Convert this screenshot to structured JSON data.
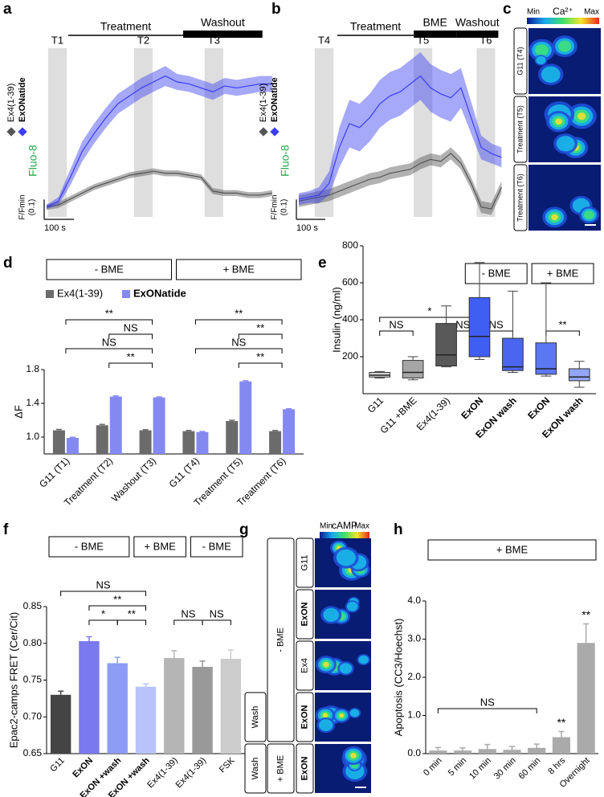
{
  "chart_data": [
    {
      "type": "trace",
      "letter": "a",
      "xlim": [
        0,
        790
      ],
      "ylim": [
        0.95,
        1.8
      ],
      "x": [
        0,
        40,
        80,
        120,
        160,
        200,
        240,
        280,
        320,
        360,
        400,
        440,
        480,
        520,
        560,
        600,
        640,
        680,
        720,
        760
      ],
      "series": [
        {
          "name": "Ex4(1-39)",
          "color": "#555555",
          "values": [
            1.0,
            1.01,
            1.04,
            1.07,
            1.1,
            1.12,
            1.14,
            1.16,
            1.17,
            1.18,
            1.17,
            1.17,
            1.16,
            1.15,
            1.08,
            1.07,
            1.07,
            1.06,
            1.06,
            1.07
          ],
          "error": [
            0.015,
            0.015,
            0.015,
            0.015,
            0.015,
            0.015,
            0.015,
            0.015,
            0.015,
            0.015,
            0.015,
            0.015,
            0.015,
            0.015,
            0.015,
            0.015,
            0.015,
            0.015,
            0.015,
            0.015
          ]
        },
        {
          "name": "ExONatide",
          "color": "#3a3ef0",
          "bold": true,
          "values": [
            1.0,
            1.03,
            1.15,
            1.28,
            1.37,
            1.45,
            1.52,
            1.56,
            1.6,
            1.63,
            1.66,
            1.63,
            1.62,
            1.6,
            1.58,
            1.61,
            1.6,
            1.61,
            1.62,
            1.62
          ],
          "error": [
            0.01,
            0.02,
            0.04,
            0.05,
            0.05,
            0.05,
            0.05,
            0.05,
            0.05,
            0.05,
            0.05,
            0.04,
            0.04,
            0.04,
            0.04,
            0.04,
            0.04,
            0.04,
            0.04,
            0.04
          ]
        }
      ],
      "periods": [
        {
          "label": "Treatment",
          "start": 73,
          "end": 460,
          "style": "thin"
        },
        {
          "label": "Washout",
          "start": 460,
          "end": 727,
          "style": "thick"
        }
      ],
      "windows": [
        {
          "label": "T1",
          "start": 5,
          "end": 68
        },
        {
          "label": "T2",
          "start": 295,
          "end": 357
        },
        {
          "label": "T3",
          "start": 532,
          "end": 595
        }
      ],
      "signal": "Fluo-8",
      "scale_x": {
        "value": 100,
        "label": "100 s"
      },
      "scale_y": {
        "value": 0.1,
        "label": [
          "F/Fmin",
          "(0.1)"
        ]
      }
    },
    {
      "type": "trace",
      "letter": "b",
      "xlim": [
        0,
        710
      ],
      "ylim": [
        0.95,
        1.8
      ],
      "x": [
        0,
        35,
        70,
        105,
        140,
        175,
        210,
        245,
        280,
        315,
        350,
        385,
        420,
        455,
        490,
        525,
        560,
        595,
        630,
        665,
        700
      ],
      "series": [
        {
          "name": "Ex4(1-39)",
          "color": "#555555",
          "values": [
            1.03,
            1.04,
            1.05,
            1.06,
            1.08,
            1.1,
            1.12,
            1.14,
            1.15,
            1.17,
            1.18,
            1.19,
            1.22,
            1.24,
            1.23,
            1.27,
            1.22,
            1.12,
            1.0,
            0.99,
            1.1
          ],
          "error": [
            0.03,
            0.03,
            0.03,
            0.03,
            0.03,
            0.03,
            0.03,
            0.03,
            0.03,
            0.03,
            0.03,
            0.03,
            0.03,
            0.03,
            0.03,
            0.03,
            0.03,
            0.03,
            0.03,
            0.03,
            0.03
          ]
        },
        {
          "name": "ExONatide",
          "color": "#3a3ef0",
          "bold": true,
          "values": [
            1.04,
            1.05,
            1.06,
            1.12,
            1.3,
            1.42,
            1.4,
            1.45,
            1.52,
            1.56,
            1.58,
            1.62,
            1.66,
            1.6,
            1.57,
            1.55,
            1.6,
            1.45,
            1.3,
            1.27,
            1.25
          ],
          "error": [
            0.03,
            0.03,
            0.04,
            0.06,
            0.1,
            0.12,
            0.12,
            0.12,
            0.12,
            0.12,
            0.12,
            0.12,
            0.12,
            0.12,
            0.12,
            0.12,
            0.1,
            0.08,
            0.06,
            0.05,
            0.05
          ]
        }
      ],
      "periods": [
        {
          "label": "Treatment",
          "start": 133,
          "end": 397,
          "style": "thin"
        },
        {
          "label": "BME",
          "start": 397,
          "end": 544,
          "style": "thick"
        },
        {
          "label": "Washout",
          "start": 544,
          "end": 689,
          "style": "thick"
        }
      ],
      "windows": [
        {
          "label": "T4",
          "start": 55,
          "end": 120
        },
        {
          "label": "T5",
          "start": 397,
          "end": 461
        },
        {
          "label": "T6",
          "start": 614,
          "end": 678
        }
      ],
      "signal": "Fluo-8",
      "scale_x": {
        "value": 100,
        "label": "100 s"
      },
      "scale_y": {
        "value": 0.1,
        "label": [
          "F/Fmin",
          "(0.1)"
        ]
      }
    },
    {
      "type": "image",
      "letter": "c",
      "colorbar": {
        "min": "Min",
        "title": "Ca²⁺",
        "max": "Max"
      },
      "rows": [
        "G11 (T4)",
        "Treatment (T5)",
        "Treatment (T6)"
      ]
    },
    {
      "type": "bar",
      "letter": "d",
      "categories": [
        "G11 (T1)",
        "Treatment (T2)",
        "Washout (T3)",
        "G11 (T4)",
        "Treatment (T5)",
        "Treatment (T6)"
      ],
      "series": [
        {
          "name": "Ex4(1-39)",
          "color": "#6b6b6b",
          "values": [
            1.08,
            1.14,
            1.08,
            1.07,
            1.19,
            1.07
          ],
          "error": [
            0.01,
            0.01,
            0.008,
            0.008,
            0.01,
            0.008
          ]
        },
        {
          "name": "ExONatide",
          "color": "#8489f2",
          "bold": true,
          "values": [
            0.99,
            1.48,
            1.47,
            1.06,
            1.66,
            1.33
          ],
          "error": [
            0.008,
            0.008,
            0.006,
            0.006,
            0.008,
            0.006
          ]
        }
      ],
      "legend": true,
      "ylabel": "ΔF",
      "ylim": [
        0.8,
        1.8
      ],
      "yticks": [
        {
          "value": 1,
          "label": "1.0"
        },
        1.4,
        1.8
      ],
      "headers": [
        {
          "label": "- BME",
          "from": 0,
          "to": 2
        },
        {
          "label": "+ BME",
          "from": 3,
          "to": 5
        }
      ],
      "brackets": [
        {
          "label": "**",
          "from": 1,
          "to": 2
        },
        {
          "label": "NS",
          "from": 0,
          "to": 2
        },
        {
          "label": "NS",
          "from": 1,
          "to": 2
        },
        {
          "label": "**",
          "from": 0,
          "to": 2
        },
        {
          "label": "**",
          "from": 4,
          "to": 5
        },
        {
          "label": "NS",
          "from": 3,
          "to": 5
        },
        {
          "label": "**",
          "from": 4,
          "to": 5
        },
        {
          "label": "**",
          "from": 3,
          "to": 5
        }
      ]
    },
    {
      "type": "box",
      "letter": "e",
      "categories": [
        "G11",
        "G11 +BME",
        "Ex4(1-39)",
        "ExON",
        "ExON wash",
        "ExON",
        "ExON wash"
      ],
      "colors": [
        "#d9d9d9",
        "#a6a6a6",
        "#595959",
        "#3f5ef2",
        "#4a66f0",
        "#5b77f2",
        "#93a5f7"
      ],
      "bold": [
        3,
        4,
        5,
        6
      ],
      "min": [
        85,
        75,
        145,
        185,
        115,
        95,
        35
      ],
      "q1": [
        90,
        85,
        150,
        200,
        125,
        105,
        70
      ],
      "median": [
        100,
        115,
        210,
        310,
        145,
        135,
        90
      ],
      "q3": [
        115,
        180,
        380,
        520,
        300,
        275,
        135
      ],
      "max": [
        120,
        200,
        475,
        710,
        555,
        600,
        175
      ],
      "ylabel": "Insulin (ng/ml)",
      "ylim": [
        0,
        800
      ],
      "yticks": [
        200,
        400,
        600,
        800
      ],
      "headers": [
        {
          "label": "- BME",
          "from": 3,
          "to": 4
        },
        {
          "label": "+ BME",
          "from": 5,
          "to": 6
        }
      ],
      "brackets": [
        {
          "label": "NS",
          "from": 0,
          "to": 1
        },
        {
          "label": "NS",
          "from": 3,
          "to": 4
        },
        {
          "label": "NS",
          "from": 2,
          "to": 3
        },
        {
          "label": "*",
          "from": 0,
          "to": 3
        },
        {
          "label": "**",
          "from": 5,
          "to": 6
        }
      ]
    },
    {
      "type": "bar",
      "letter": "f",
      "categories": [
        "G11",
        "ExON",
        "ExON +wash",
        "ExON +wash",
        "Ex4(1-39)",
        "Ex4(1-39)",
        "FSK"
      ],
      "values": [
        0.73,
        0.803,
        0.773,
        0.741,
        0.78,
        0.768,
        0.779
      ],
      "error": [
        0.005,
        0.006,
        0.008,
        0.004,
        0.01,
        0.008,
        0.012
      ],
      "colors": [
        "#444444",
        "#7b79ee",
        "#8d9cf5",
        "#b7c3fa",
        "#b5b5b5",
        "#999999",
        "#cccccc"
      ],
      "bold": [
        1,
        2,
        3
      ],
      "ylabel": "Epac2-camps FRET (Cer/Cit)",
      "ylim": [
        0.65,
        0.85
      ],
      "yticks": [
        0.65,
        {
          "value": 0.7,
          "label": "0.70"
        },
        0.75,
        {
          "value": 0.8,
          "label": "0.80"
        },
        0.85
      ],
      "headers": [
        {
          "label": "- BME",
          "from": 0,
          "to": 2
        },
        {
          "label": "+ BME",
          "from": 3,
          "to": 4
        },
        {
          "label": "- BME",
          "from": 5,
          "to": 6
        }
      ],
      "brackets": [
        {
          "label": "**",
          "from": 2,
          "to": 3
        },
        {
          "label": "*",
          "from": 1,
          "to": 2
        },
        {
          "label": "**",
          "from": 1,
          "to": 3
        },
        {
          "label": "NS",
          "from": 0,
          "to": 3
        },
        {
          "label": "NS",
          "from": 4,
          "to": 5
        },
        {
          "label": "NS",
          "from": 5,
          "to": 6
        }
      ]
    },
    {
      "type": "image",
      "letter": "g",
      "colorbar": {
        "min": "Min",
        "title": "cAMP",
        "max": "Max"
      },
      "rows": [
        "G11",
        "ExON",
        "Ex4",
        "ExON",
        "ExON"
      ],
      "bold": [
        1,
        3,
        4
      ],
      "conditions": [
        "- BME",
        "Wash",
        "Wash",
        "+ BME"
      ]
    },
    {
      "type": "bar",
      "letter": "h",
      "categories": [
        "0 min",
        "5 min",
        "10 min",
        "30 min",
        "60 min",
        "8 hrs",
        "Overnight"
      ],
      "values": [
        0.08,
        0.08,
        0.12,
        0.1,
        0.15,
        0.43,
        2.9
      ],
      "error": [
        0.08,
        0.07,
        0.12,
        0.09,
        0.1,
        0.15,
        0.5
      ],
      "color": "#aaaaaa",
      "ylabel": "Apoptosis (CC3/Hoechst)",
      "ylim": [
        0,
        4
      ],
      "yticks": [
        {
          "value": 0,
          "label": "0.0"
        },
        {
          "value": 1,
          "label": "1.0"
        },
        {
          "value": 2,
          "label": "2.0"
        },
        {
          "value": 3,
          "label": "3.0"
        },
        {
          "value": 4,
          "label": "4.0"
        }
      ],
      "headers": [
        {
          "label": "+ BME",
          "from": 0,
          "to": 6
        }
      ],
      "brackets": [
        {
          "label": "NS",
          "from": 0,
          "to": 4
        }
      ],
      "annotations": [
        {
          "label": "**",
          "index": 5
        },
        {
          "label": "**",
          "index": 6
        }
      ]
    }
  ]
}
